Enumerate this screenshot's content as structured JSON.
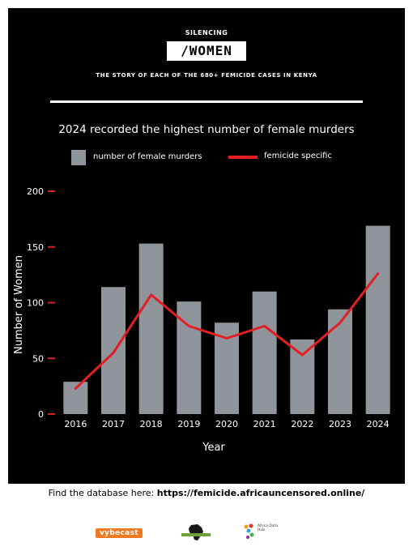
{
  "header": {
    "kicker": "SILENCING",
    "brand": "/WOMEN",
    "tagline": "THE STORY OF EACH OF THE 680+ FEMICIDE CASES IN KENYA"
  },
  "chart_data": {
    "type": "bar",
    "title": "2024 recorded the highest number of female murders",
    "categories": [
      "2016",
      "2017",
      "2018",
      "2019",
      "2020",
      "2021",
      "2022",
      "2023",
      "2024"
    ],
    "series": [
      {
        "name": "number of female murders",
        "type": "bar",
        "color": "#8f959b",
        "values": [
          29,
          114,
          153,
          101,
          82,
          110,
          67,
          94,
          169
        ]
      },
      {
        "name": "femicide specific",
        "type": "line",
        "color": "#e31e24",
        "values": [
          23,
          55,
          107,
          79,
          68,
          79,
          53,
          82,
          126
        ]
      }
    ],
    "xlabel": "Year",
    "ylabel": "Number of Women",
    "ylim": [
      0,
      200
    ],
    "yticks": [
      "0",
      "50",
      "100",
      "150",
      "200"
    ],
    "tick_color": "#e31e24",
    "grid": false,
    "legend": "top-center"
  },
  "footer": {
    "prefix": "Find the database here: ",
    "url": "https://femicide.africauncensored.online/"
  },
  "logos": {
    "vybecast": "vybecast",
    "africa_data_hub": "Africa Data Hub"
  }
}
